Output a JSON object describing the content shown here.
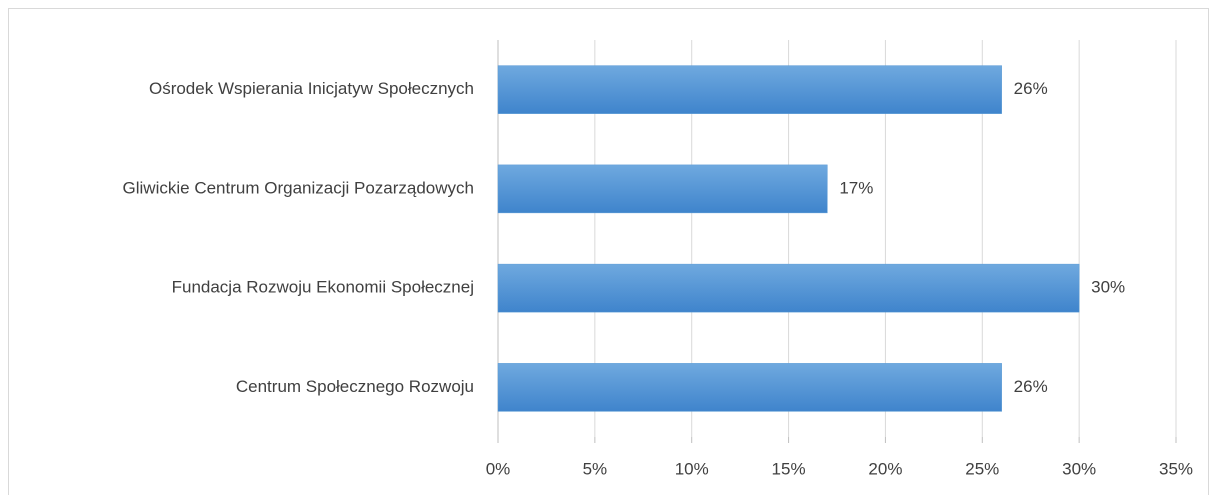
{
  "chart_data": {
    "type": "bar",
    "orientation": "horizontal",
    "categories": [
      "Ośrodek Wspierania Inicjatyw Społecznych",
      "Gliwickie Centrum Organizacji Pozarządowych",
      "Fundacja Rozwoju Ekonomii Społecznej",
      "Centrum Społecznego Rozwoju"
    ],
    "values": [
      26,
      17,
      30,
      26
    ],
    "value_labels": [
      "26%",
      "17%",
      "30%",
      "26%"
    ],
    "color": "#5b9bd5",
    "xlim": [
      0,
      35
    ],
    "xticks": [
      {
        "value": 0,
        "label": "0%"
      },
      {
        "value": 5,
        "label": "5%"
      },
      {
        "value": 10,
        "label": "10%"
      },
      {
        "value": 15,
        "label": "15%"
      },
      {
        "value": 20,
        "label": "20%"
      },
      {
        "value": 25,
        "label": "25%"
      },
      {
        "value": 30,
        "label": "30%"
      },
      {
        "value": 35,
        "label": "35%"
      }
    ],
    "grid": true
  }
}
